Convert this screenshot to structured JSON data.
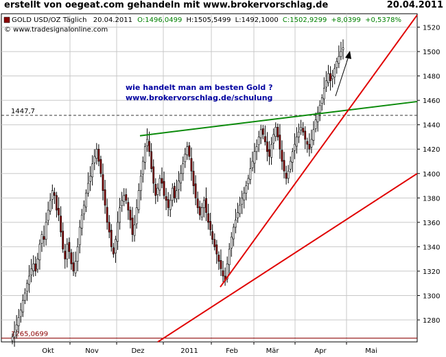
{
  "header": {
    "left": "erstellt von oegeat.com gehandeln mit www.brokervorschlag.de",
    "right": "20.04.2011"
  },
  "legend": {
    "instrument": "GOLD USD/OZ Täglich",
    "date": "20.04.2011",
    "open": "O:1496,0499",
    "high": "H:1505,5499",
    "low": "L:1492,1000",
    "close": "C:1502,9299",
    "change": "+8,0399",
    "change_pct": "+0,5378%",
    "copyright": "© www.tradesignalonline.com"
  },
  "annotation": {
    "line1": "wie handelt man am besten Gold ?",
    "line2": "www.brokervorschlag.de/schulung"
  },
  "colors": {
    "up_candle": "#ffffff",
    "down_candle": "#8b0000",
    "support_lines": "#e00000",
    "resistance_line": "#0a8a0a",
    "annotation_text": "#0000a0",
    "legend_green": "#008000"
  },
  "chart_data": {
    "type": "candlestick",
    "ylim": [
      1262,
      1531
    ],
    "y_ticks": [
      1280,
      1300,
      1320,
      1340,
      1360,
      1380,
      1400,
      1420,
      1440,
      1460,
      1480,
      1500,
      1520
    ],
    "x_labels": [
      "Okt",
      "Nov",
      "Dez",
      "2011",
      "Feb",
      "Mär",
      "Apr",
      "Mai"
    ],
    "grid": true,
    "levels": [
      {
        "label": "1447,7",
        "value": 1447.7,
        "style": "dashed"
      },
      {
        "label": "1265,0699",
        "value": 1265.07,
        "style": "solid"
      }
    ],
    "trendlines": [
      {
        "color": "green",
        "points": [
          [
            "Dez 2010",
            1431
          ],
          [
            "Mai 2011",
            1459
          ]
        ]
      },
      {
        "color": "red",
        "points": [
          [
            "Jan 2011",
            1307
          ],
          [
            "Mai 2011",
            1530
          ]
        ]
      },
      {
        "color": "red",
        "points": [
          [
            "Dez 2010",
            1260
          ],
          [
            "Mai 2011",
            1400
          ]
        ]
      }
    ],
    "closes": [
      1266,
      1270,
      1276,
      1282,
      1288,
      1296,
      1302,
      1310,
      1316,
      1322,
      1326,
      1320,
      1330,
      1342,
      1350,
      1346,
      1360,
      1370,
      1378,
      1386,
      1382,
      1370,
      1366,
      1352,
      1338,
      1330,
      1342,
      1336,
      1326,
      1320,
      1328,
      1340,
      1356,
      1366,
      1374,
      1384,
      1392,
      1398,
      1408,
      1414,
      1420,
      1410,
      1400,
      1386,
      1374,
      1360,
      1352,
      1340,
      1334,
      1346,
      1360,
      1372,
      1378,
      1382,
      1378,
      1370,
      1362,
      1350,
      1358,
      1372,
      1386,
      1398,
      1410,
      1422,
      1428,
      1418,
      1404,
      1392,
      1382,
      1388,
      1396,
      1392,
      1382,
      1378,
      1372,
      1378,
      1388,
      1380,
      1386,
      1394,
      1400,
      1408,
      1416,
      1422,
      1414,
      1402,
      1390,
      1380,
      1372,
      1366,
      1372,
      1378,
      1368,
      1360,
      1354,
      1346,
      1340,
      1334,
      1328,
      1322,
      1316,
      1312,
      1326,
      1338,
      1348,
      1356,
      1362,
      1368,
      1374,
      1380,
      1384,
      1390,
      1396,
      1404,
      1410,
      1418,
      1422,
      1430,
      1436,
      1432,
      1426,
      1418,
      1414,
      1424,
      1432,
      1438,
      1430,
      1420,
      1410,
      1402,
      1396,
      1402,
      1410,
      1418,
      1424,
      1430,
      1434,
      1438,
      1434,
      1428,
      1424,
      1420,
      1428,
      1436,
      1444,
      1450,
      1456,
      1462,
      1470,
      1476,
      1482,
      1476,
      1480,
      1486,
      1492,
      1496,
      1500,
      1503
    ]
  }
}
